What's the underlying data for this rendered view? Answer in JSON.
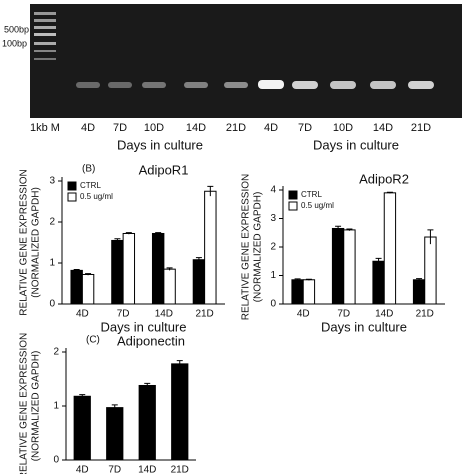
{
  "gel": {
    "ladder_labels": [
      "500bp",
      "100bp"
    ],
    "lane_labels": [
      "1kb M",
      "4D",
      "7D",
      "10D",
      "14D",
      "21D",
      "4D",
      "7D",
      "10D",
      "14D",
      "21D"
    ],
    "axis_labels": [
      "Days in culture",
      "Days in culture"
    ]
  },
  "chart_data": [
    {
      "type": "bar",
      "panel": "(B)",
      "title": "AdipoR1",
      "ylabel": [
        "RELATIVE GENE EXPRESSION",
        "(NORMALIZED GAPDH)"
      ],
      "xlabel": "Days in culture",
      "categories": [
        "4D",
        "7D",
        "14D",
        "21D"
      ],
      "series": [
        {
          "name": "CTRL",
          "color": "#000000",
          "values": [
            0.82,
            1.55,
            1.72,
            1.08
          ],
          "errors": [
            0.02,
            0.04,
            0.02,
            0.05
          ]
        },
        {
          "name": "0.5 ug/ml",
          "color": "#ffffff",
          "values": [
            0.72,
            1.72,
            0.85,
            2.75
          ],
          "errors": [
            0.02,
            0.02,
            0.03,
            0.12
          ]
        }
      ],
      "ylim": [
        0,
        3
      ],
      "yticks": [
        0,
        1,
        2,
        3
      ]
    },
    {
      "type": "bar",
      "title": "AdipoR2",
      "ylabel": [
        "RELATIVE GENE EXPRESSION",
        "(NORMALIZED GAPDH)"
      ],
      "xlabel": "Days in culture",
      "categories": [
        "4D",
        "7D",
        "14D",
        "21D"
      ],
      "series": [
        {
          "name": "CTRL",
          "color": "#000000",
          "values": [
            0.85,
            2.65,
            1.5,
            0.85
          ],
          "errors": [
            0.03,
            0.08,
            0.1,
            0.04
          ]
        },
        {
          "name": "0.5 ug/ml",
          "color": "#ffffff",
          "values": [
            0.85,
            2.6,
            3.9,
            2.35
          ],
          "errors": [
            0.02,
            0.03,
            0.02,
            0.25
          ]
        }
      ],
      "ylim": [
        0,
        4
      ],
      "yticks": [
        0,
        1,
        2,
        3,
        4
      ]
    },
    {
      "type": "bar",
      "panel": "(C)",
      "title": "Adiponectin",
      "ylabel": [
        "RELATIVE GENE EXPRESSION",
        "(NORMALIZED GAPDH)"
      ],
      "categories": [
        "4D",
        "7D",
        "14D",
        "21D"
      ],
      "series": [
        {
          "color": "#000000",
          "values": [
            1.18,
            0.97,
            1.38,
            1.78
          ],
          "errors": [
            0.03,
            0.05,
            0.04,
            0.06
          ]
        }
      ],
      "ylim": [
        0,
        2
      ],
      "yticks": [
        0,
        1,
        2
      ]
    }
  ]
}
